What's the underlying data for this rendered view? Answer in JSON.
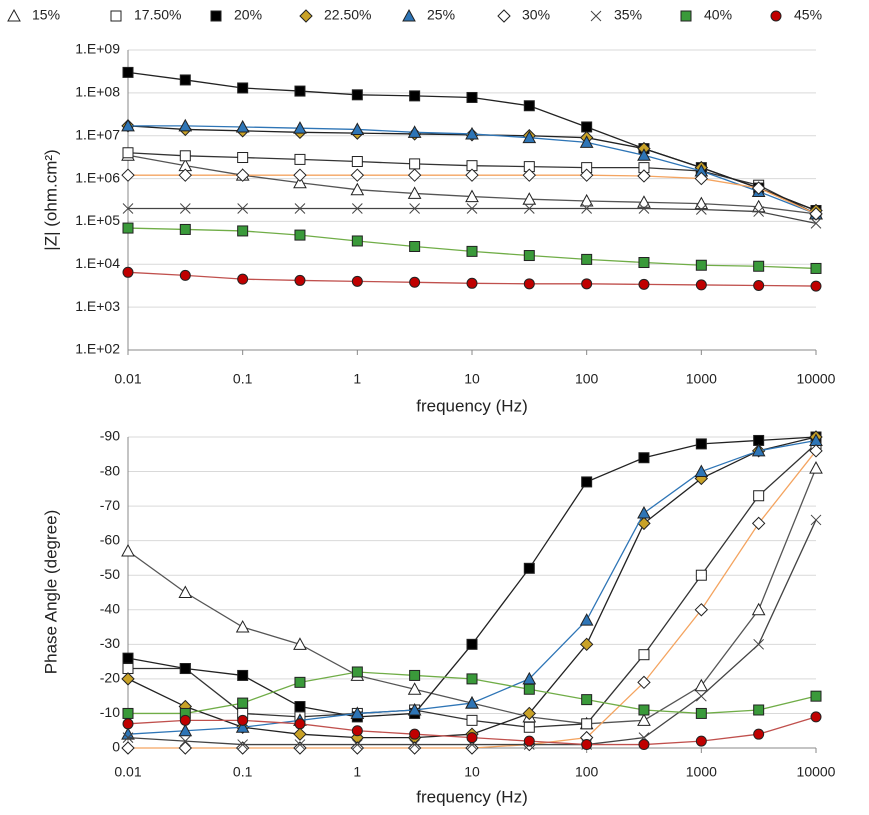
{
  "chart_data": [
    {
      "type": "line",
      "log_x": true,
      "log_y": true,
      "grid": true,
      "legend": "top",
      "y_label": "|Z| (ohm.cm²)",
      "x_label": "frequency (Hz)",
      "x": [
        0.01,
        0.0316,
        0.1,
        0.316,
        1,
        3.16,
        10,
        31.6,
        100,
        316,
        1000,
        3162,
        10000
      ],
      "xlim": [
        0.01,
        10000
      ],
      "xticks": [
        0.01,
        0.1,
        1,
        10,
        100,
        1000,
        10000
      ],
      "ylim": [
        100,
        1000000000
      ],
      "yticks": [
        {
          "value": 100,
          "label": "1.E+02"
        },
        {
          "value": 1000,
          "label": "1.E+03"
        },
        {
          "value": 10000,
          "label": "1.E+04"
        },
        {
          "value": 100000,
          "label": "1.E+05"
        },
        {
          "value": 1000000,
          "label": "1.E+06"
        },
        {
          "value": 10000000,
          "label": "1.E+07"
        },
        {
          "value": 100000000,
          "label": "1.E+08"
        },
        {
          "value": 1000000000,
          "label": "1.E+09"
        }
      ],
      "series": [
        {
          "name": "15%",
          "color": "#555555",
          "marker": "triangle",
          "fill": "#ffffff",
          "values": [
            3500000,
            2000000,
            1200000,
            800000,
            550000,
            450000,
            380000,
            330000,
            300000,
            280000,
            260000,
            220000,
            150000
          ]
        },
        {
          "name": "17.50%",
          "color": "#333333",
          "marker": "square",
          "fill": "#ffffff",
          "values": [
            4000000,
            3400000,
            3100000,
            2800000,
            2500000,
            2200000,
            2000000,
            1900000,
            1800000,
            1800000,
            1500000,
            700000,
            150000
          ]
        },
        {
          "name": "20%",
          "color": "#222222",
          "marker": "square",
          "fill": "#000000",
          "values": [
            300000000,
            200000000,
            130000000,
            110000000,
            90000000,
            85000000,
            78000000,
            50000000,
            16000000,
            5000000,
            1800000,
            600000,
            180000
          ]
        },
        {
          "name": "22.50%",
          "color": "#222222",
          "marker": "diamond",
          "fill": "#c9a227",
          "values": [
            17000000,
            14000000,
            13000000,
            12000000,
            11500000,
            11000000,
            10500000,
            10000000,
            9000000,
            5000000,
            1800000,
            600000,
            180000
          ]
        },
        {
          "name": "25%",
          "color": "#2e75b6",
          "marker": "triangle",
          "fill": "#2e75b6",
          "values": [
            17000000,
            17000000,
            16000000,
            15000000,
            14000000,
            12000000,
            11000000,
            9000000,
            7000000,
            3500000,
            1500000,
            500000,
            150000
          ]
        },
        {
          "name": "30%",
          "color": "#f4a460",
          "marker": "diamond",
          "fill": "#ffffff",
          "values": [
            1200000,
            1200000,
            1200000,
            1200000,
            1200000,
            1200000,
            1200000,
            1200000,
            1200000,
            1150000,
            1000000,
            600000,
            150000
          ]
        },
        {
          "name": "35%",
          "color": "#444444",
          "marker": "x",
          "fill": "#444444",
          "values": [
            200000,
            200000,
            200000,
            200000,
            200000,
            200000,
            200000,
            200000,
            200000,
            200000,
            190000,
            170000,
            90000
          ]
        },
        {
          "name": "40%",
          "color": "#70ad47",
          "marker": "square",
          "fill": "#3a9a3a",
          "values": [
            70000,
            65000,
            60000,
            48000,
            35000,
            26000,
            20000,
            16000,
            13000,
            11000,
            9500,
            9000,
            8000
          ]
        },
        {
          "name": "45%",
          "color": "#c0504d",
          "marker": "circle",
          "fill": "#c00000",
          "values": [
            6500,
            5500,
            4500,
            4200,
            4000,
            3800,
            3600,
            3500,
            3500,
            3400,
            3300,
            3200,
            3100
          ]
        }
      ]
    },
    {
      "type": "line",
      "log_x": true,
      "grid": true,
      "y_label": "Phase Angle (degree)",
      "x_label": "frequency (Hz)",
      "x": [
        0.01,
        0.0316,
        0.1,
        0.316,
        1,
        3.16,
        10,
        31.6,
        100,
        316,
        1000,
        3162,
        10000
      ],
      "xlim": [
        0.01,
        10000
      ],
      "xticks": [
        0.01,
        0.1,
        1,
        10,
        100,
        1000,
        10000
      ],
      "ylim": [
        0,
        -90
      ],
      "yticks": [
        0,
        -10,
        -20,
        -30,
        -40,
        -50,
        -60,
        -70,
        -80,
        -90
      ],
      "series": [
        {
          "values": [
            -57,
            -45,
            -35,
            -30,
            -21,
            -17,
            -13,
            -9,
            -7,
            -8,
            -18,
            -40,
            -81
          ]
        },
        {
          "values": [
            -23,
            -23,
            -10,
            -9,
            -10,
            -11,
            -8,
            -6,
            -7,
            -27,
            -50,
            -73,
            -88
          ]
        },
        {
          "values": [
            -26,
            -23,
            -21,
            -12,
            -9,
            -10,
            -30,
            -52,
            -77,
            -84,
            -88,
            -89,
            -90
          ]
        },
        {
          "values": [
            -20,
            -12,
            -6,
            -4,
            -3,
            -3,
            -4,
            -10,
            -30,
            -65,
            -78,
            -86,
            -90
          ]
        },
        {
          "values": [
            -4,
            -5,
            -6,
            -8,
            -10,
            -11,
            -13,
            -20,
            -37,
            -68,
            -80,
            -86,
            -89
          ]
        },
        {
          "values": [
            0,
            0,
            0,
            0,
            0,
            0,
            0,
            -1,
            -3,
            -19,
            -40,
            -65,
            -86
          ]
        },
        {
          "values": [
            -3,
            -2,
            -1,
            -1,
            -1,
            -1,
            -1,
            -1,
            -1,
            -3,
            -15,
            -30,
            -66
          ]
        },
        {
          "values": [
            -10,
            -10,
            -13,
            -19,
            -22,
            -21,
            -20,
            -17,
            -14,
            -11,
            -10,
            -11,
            -15
          ]
        },
        {
          "values": [
            -7,
            -8,
            -8,
            -7,
            -5,
            -4,
            -3,
            -2,
            -1,
            -1,
            -2,
            -4,
            -9
          ]
        }
      ]
    }
  ]
}
